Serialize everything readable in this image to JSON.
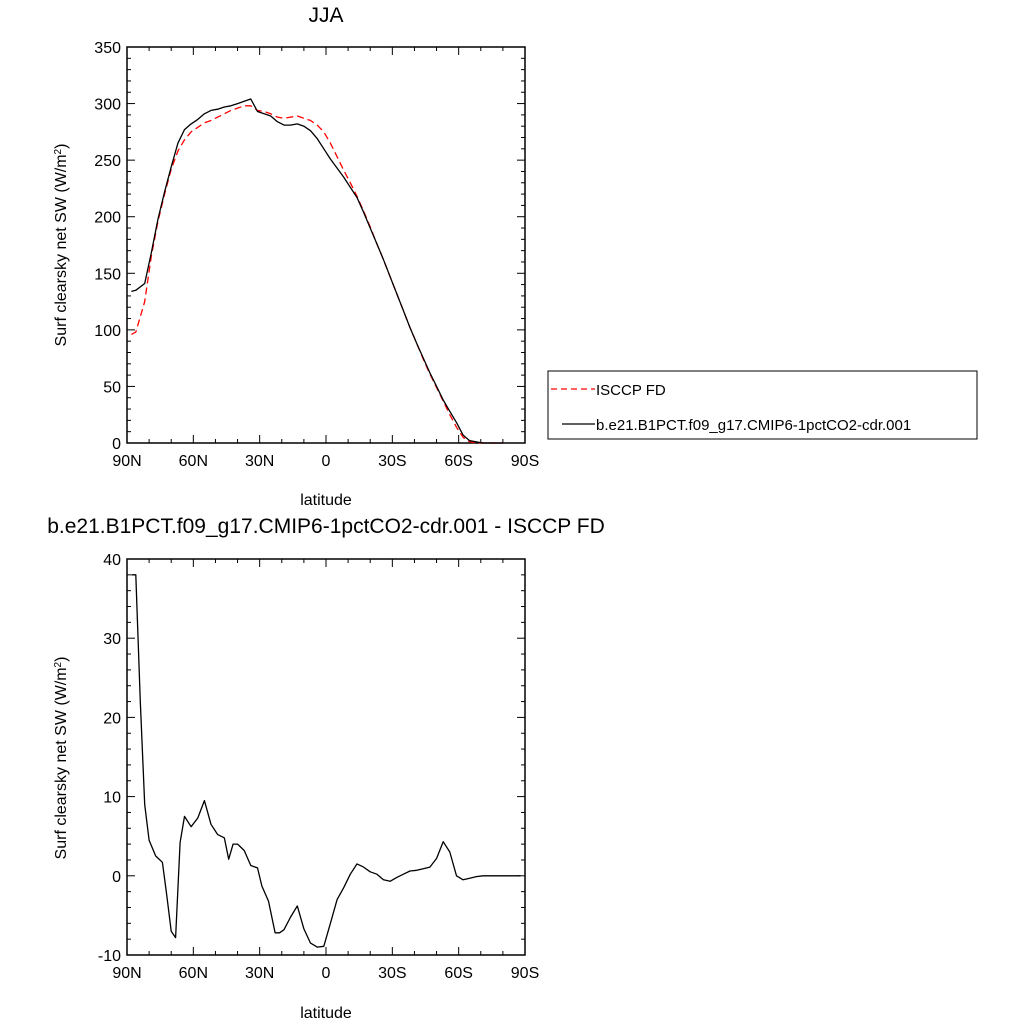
{
  "chart_data": [
    {
      "type": "line",
      "title": "JJA",
      "xlabel": "latitude",
      "ylabel_main": "Surf clearsky net SW (W/m",
      "ylabel_sup": "2",
      "ylabel_close": ")",
      "xlim": [
        90,
        -90
      ],
      "ylim": [
        0,
        350
      ],
      "x_ticks": [
        {
          "value": 90,
          "label": "90N"
        },
        {
          "value": 60,
          "label": "60N"
        },
        {
          "value": 30,
          "label": "30N"
        },
        {
          "value": 0,
          "label": "0"
        },
        {
          "value": -30,
          "label": "30S"
        },
        {
          "value": -60,
          "label": "60S"
        },
        {
          "value": -90,
          "label": "90S"
        }
      ],
      "y_ticks": [
        {
          "value": 0,
          "label": "0"
        },
        {
          "value": 50,
          "label": "50"
        },
        {
          "value": 100,
          "label": "100"
        },
        {
          "value": 150,
          "label": "150"
        },
        {
          "value": 200,
          "label": "200"
        },
        {
          "value": 250,
          "label": "250"
        },
        {
          "value": 300,
          "label": "300"
        },
        {
          "value": 350,
          "label": "350"
        }
      ],
      "legend_position": "right",
      "series": [
        {
          "name": "ISCCP FD",
          "color": "#ff0000",
          "dash": "dashed",
          "x": [
            88,
            86,
            82,
            79,
            76,
            73,
            70,
            67,
            64,
            61,
            58,
            55,
            52,
            49,
            46,
            43,
            40,
            37,
            34,
            31,
            28,
            25,
            22,
            19,
            16,
            13,
            10,
            7,
            4,
            1,
            -2,
            -5,
            -8,
            -11,
            -14,
            -17,
            -20,
            -23,
            -26,
            -29,
            -32,
            -35,
            -38,
            -41,
            -44,
            -47,
            -50,
            -53,
            -56,
            -59,
            -62,
            -65,
            -68,
            -71,
            -74,
            -77,
            -80
          ],
          "y": [
            96,
            98,
            125,
            165,
            196,
            220,
            242,
            258,
            268,
            275,
            279,
            283,
            285,
            288,
            291,
            294,
            296,
            298,
            298,
            294,
            293,
            291,
            288,
            287,
            288,
            289,
            287,
            285,
            281,
            275,
            265,
            253,
            241,
            230,
            218,
            205,
            191,
            176,
            162,
            147,
            132,
            117,
            102,
            88,
            74,
            61,
            49,
            37,
            25,
            14,
            5,
            1,
            0,
            0,
            0,
            0,
            0
          ]
        },
        {
          "name": "b.e21.B1PCT.f09_g17.CMIP6-1pctCO2-cdr.001",
          "color": "#000000",
          "dash": "solid",
          "x": [
            88,
            86,
            82,
            79,
            76,
            73,
            70,
            67,
            64,
            61,
            58,
            55,
            52,
            49,
            46,
            43,
            40,
            37,
            34,
            31,
            28,
            25,
            22,
            19,
            16,
            13,
            10,
            7,
            4,
            1,
            -2,
            -5,
            -8,
            -11,
            -14,
            -17,
            -20,
            -23,
            -26,
            -29,
            -32,
            -35,
            -38,
            -41,
            -44,
            -47,
            -50,
            -53,
            -56,
            -59,
            -62,
            -65,
            -68,
            -71,
            -74,
            -77,
            -80
          ],
          "y": [
            134,
            135,
            141,
            168,
            198,
            222,
            244,
            265,
            277,
            282,
            286,
            291,
            294,
            295,
            297,
            298,
            300,
            302,
            304,
            293,
            291,
            289,
            284,
            281,
            281,
            282,
            280,
            276,
            269,
            260,
            251,
            243,
            235,
            226,
            217,
            204,
            190,
            176,
            162,
            147,
            132,
            117,
            102,
            88,
            75,
            62,
            50,
            38,
            28,
            18,
            7,
            2,
            1,
            0,
            0,
            0,
            0
          ]
        }
      ]
    },
    {
      "type": "line",
      "title": "b.e21.B1PCT.f09_g17.CMIP6-1pctCO2-cdr.001 - ISCCP FD",
      "xlabel": "latitude",
      "ylabel_main": "Surf clearsky net SW (W/m",
      "ylabel_sup": "2",
      "ylabel_close": ")",
      "xlim": [
        90,
        -90
      ],
      "ylim": [
        -10,
        40
      ],
      "x_ticks": [
        {
          "value": 90,
          "label": "90N"
        },
        {
          "value": 60,
          "label": "60N"
        },
        {
          "value": 30,
          "label": "30N"
        },
        {
          "value": 0,
          "label": "0"
        },
        {
          "value": -30,
          "label": "30S"
        },
        {
          "value": -60,
          "label": "60S"
        },
        {
          "value": -90,
          "label": "90S"
        }
      ],
      "y_ticks": [
        {
          "value": -10,
          "label": "-10"
        },
        {
          "value": 0,
          "label": "0"
        },
        {
          "value": 10,
          "label": "10"
        },
        {
          "value": 20,
          "label": "20"
        },
        {
          "value": 30,
          "label": "30"
        },
        {
          "value": 40,
          "label": "40"
        }
      ],
      "series": [
        {
          "color": "#000000",
          "dash": "solid",
          "x": [
            88,
            86,
            84,
            82,
            80,
            77,
            74,
            72,
            70,
            68,
            66,
            64,
            61,
            58,
            55,
            52,
            49,
            46,
            44,
            42,
            40,
            37,
            34,
            31,
            29,
            26,
            23,
            21,
            19,
            16,
            13,
            10,
            7,
            4,
            1,
            -2,
            -5,
            -8,
            -11,
            -14,
            -17,
            -20,
            -23,
            -26,
            -29,
            -32,
            -35,
            -38,
            -41,
            -44,
            -47,
            -50,
            -53,
            -56,
            -59,
            -62,
            -65,
            -68,
            -71,
            -74,
            -77,
            -80,
            -83,
            -86,
            -88
          ],
          "y": [
            38,
            38,
            22,
            9,
            4.5,
            2.5,
            1.7,
            -2.5,
            -7,
            -7.8,
            4.2,
            7.5,
            6.2,
            7.3,
            9.5,
            6.5,
            5.2,
            4.8,
            2.1,
            4.0,
            4.0,
            3.2,
            1.3,
            1.0,
            -1.3,
            -3.2,
            -7.2,
            -7.2,
            -6.8,
            -5.2,
            -3.8,
            -6.7,
            -8.5,
            -9.0,
            -8.9,
            -6.0,
            -3.0,
            -1.5,
            0.2,
            1.5,
            1.1,
            0.5,
            0.2,
            -0.5,
            -0.7,
            -0.2,
            0.2,
            0.6,
            0.7,
            0.9,
            1.1,
            2.2,
            4.3,
            3.0,
            0,
            -0.5,
            -0.3,
            -0.1,
            0,
            0,
            0,
            0,
            0,
            0,
            0
          ]
        }
      ]
    }
  ]
}
